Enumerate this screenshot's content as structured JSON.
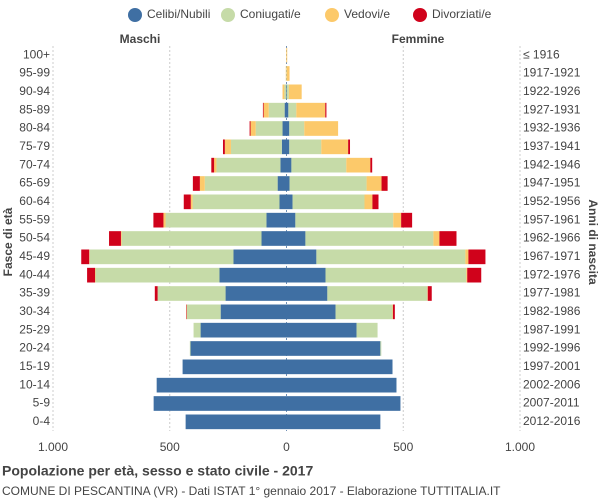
{
  "chart_data": {
    "type": "pyramid",
    "title": "Popolazione per età, sesso e stato civile - 2017",
    "subtitle": "COMUNE DI PESCANTINA (VR) - Dati ISTAT 1° gennaio 2017 - Elaborazione TUTTITALIA.IT",
    "male_label": "Maschi",
    "female_label": "Femmine",
    "ylabel": "Fasce di età",
    "y2label": "Anni di nascita",
    "categories": [
      "100+",
      "95-99",
      "90-94",
      "85-89",
      "80-84",
      "75-79",
      "70-74",
      "65-69",
      "60-64",
      "55-59",
      "50-54",
      "45-49",
      "40-44",
      "35-39",
      "30-34",
      "25-29",
      "20-24",
      "15-19",
      "10-14",
      "5-9",
      "0-4"
    ],
    "categories_right": [
      "≤ 1916",
      "1917-1921",
      "1922-1926",
      "1927-1931",
      "1932-1936",
      "1937-1941",
      "1942-1946",
      "1947-1951",
      "1952-1956",
      "1957-1961",
      "1962-1966",
      "1967-1971",
      "1972-1976",
      "1977-1981",
      "1982-1986",
      "1987-1991",
      "1992-1996",
      "1997-2001",
      "2002-2006",
      "2007-2011",
      "2012-2016"
    ],
    "series": [
      {
        "name": "Celibi/Nubili",
        "color": "#3f6fa3",
        "male": [
          0,
          0,
          1,
          8,
          17,
          20,
          26,
          38,
          30,
          86,
          107,
          227,
          287,
          261,
          282,
          368,
          411,
          445,
          556,
          569,
          432
        ],
        "female": [
          0,
          0,
          2,
          8,
          12,
          12,
          21,
          13,
          26,
          38,
          81,
          128,
          167,
          175,
          210,
          300,
          402,
          454,
          471,
          488,
          402
        ]
      },
      {
        "name": "Coniugati/e",
        "color": "#c6dba8",
        "male": [
          0,
          1,
          8,
          68,
          115,
          218,
          274,
          312,
          372,
          432,
          599,
          616,
          531,
          291,
          145,
          30,
          3,
          0,
          0,
          0,
          0
        ],
        "female": [
          0,
          1,
          8,
          34,
          64,
          137,
          235,
          330,
          308,
          419,
          548,
          638,
          603,
          428,
          244,
          90,
          4,
          0,
          0,
          0,
          0
        ]
      },
      {
        "name": "Vedovi/e",
        "color": "#fcc96a",
        "male": [
          1,
          2,
          8,
          22,
          22,
          26,
          10,
          21,
          8,
          9,
          3,
          2,
          2,
          0,
          1,
          0,
          0,
          0,
          0,
          0,
          0
        ],
        "female": [
          3,
          12,
          55,
          124,
          145,
          115,
          103,
          64,
          34,
          34,
          26,
          13,
          4,
          2,
          2,
          0,
          0,
          0,
          0,
          0,
          0
        ]
      },
      {
        "name": "Divorziati/e",
        "color": "#d0021b",
        "male": [
          0,
          0,
          0,
          3,
          4,
          8,
          12,
          30,
          30,
          43,
          51,
          34,
          34,
          12,
          2,
          0,
          0,
          0,
          0,
          0,
          0
        ],
        "female": [
          0,
          0,
          0,
          5,
          0,
          8,
          8,
          26,
          26,
          47,
          73,
          73,
          60,
          17,
          8,
          0,
          0,
          0,
          0,
          0,
          0
        ]
      }
    ],
    "xlim": [
      -1000,
      1000
    ],
    "xticks": [
      {
        "value": -1000,
        "label": "1.000"
      },
      {
        "value": -500,
        "label": "500"
      },
      0,
      500,
      {
        "value": 1000,
        "label": "1.000"
      }
    ],
    "grid": true
  }
}
